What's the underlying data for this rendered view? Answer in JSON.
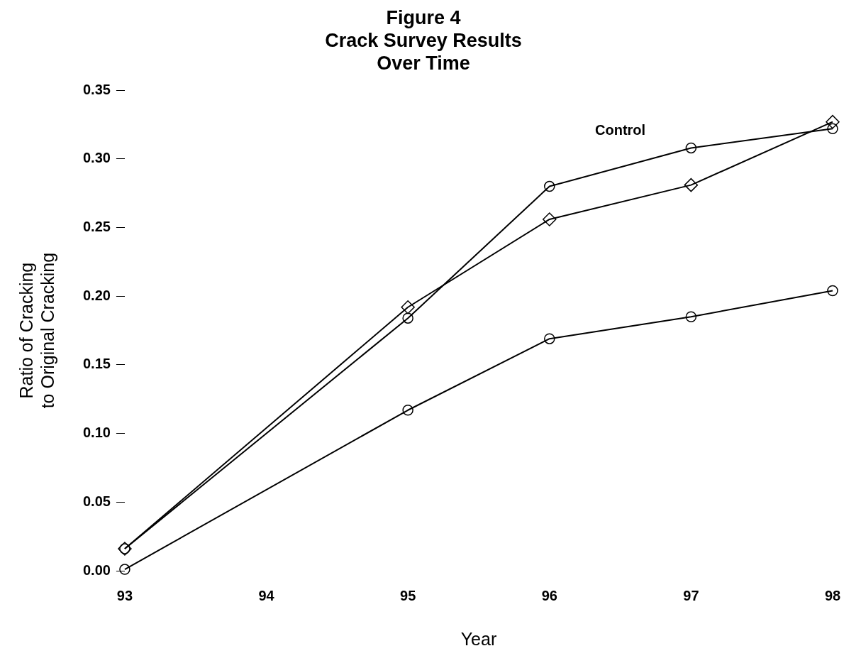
{
  "chart_data": {
    "type": "line",
    "title": "Figure 4\nCrack Survey Results\nOver Time",
    "xlabel": "Year",
    "ylabel": "Ratio of Cracking\nto Original Cracking",
    "x": [
      93,
      95,
      96,
      97,
      98
    ],
    "series": [
      {
        "name": "Control",
        "color": "#000000",
        "marker": "circle",
        "values": [
          0.016,
          0.184,
          0.28,
          0.308,
          0.322
        ]
      },
      {
        "color": "#000000",
        "marker": "diamond",
        "values": [
          0.016,
          0.192,
          0.256,
          0.281,
          0.327
        ]
      },
      {
        "color": "#000000",
        "marker": "circle",
        "values": [
          0.001,
          0.117,
          0.169,
          0.185,
          0.204
        ]
      }
    ],
    "xlim": [
      93,
      98
    ],
    "xticks": [
      93,
      94,
      95,
      96,
      97,
      98
    ],
    "ylim": [
      0,
      0.35
    ],
    "yticks": [
      {
        "value": 0,
        "label": "0.00"
      },
      {
        "value": 0.05,
        "label": "0.05"
      },
      {
        "value": 0.1,
        "label": "0.10"
      },
      {
        "value": 0.15,
        "label": "0.15"
      },
      {
        "value": 0.2,
        "label": "0.20"
      },
      {
        "value": 0.25,
        "label": "0.25"
      },
      {
        "value": 0.3,
        "label": "0.30"
      },
      {
        "value": 0.35,
        "label": "0.35"
      }
    ],
    "grid": false,
    "legend": false,
    "line_style": "solid"
  }
}
